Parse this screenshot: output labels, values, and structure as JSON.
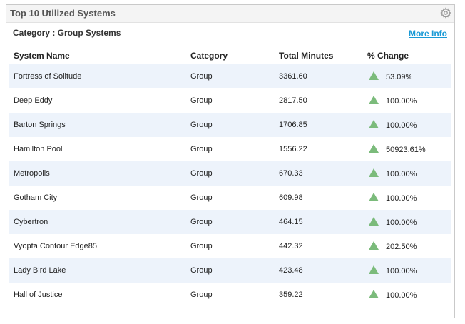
{
  "panel": {
    "title": "Top 10 Utilized Systems",
    "settings_icon": "gear-icon"
  },
  "subheader": {
    "category_label": "Category : Group Systems",
    "more_info": "More Info"
  },
  "table": {
    "headers": {
      "system_name": "System Name",
      "category": "Category",
      "total_minutes": "Total Minutes",
      "percent_change": "% Change"
    },
    "rows": [
      {
        "system_name": "Fortress of Solitude",
        "category": "Group",
        "total_minutes": "3361.60",
        "percent_change": "53.09%"
      },
      {
        "system_name": "Deep Eddy",
        "category": "Group",
        "total_minutes": "2817.50",
        "percent_change": "100.00%"
      },
      {
        "system_name": "Barton Springs",
        "category": "Group",
        "total_minutes": "1706.85",
        "percent_change": "100.00%"
      },
      {
        "system_name": "Hamilton Pool",
        "category": "Group",
        "total_minutes": "1556.22",
        "percent_change": "50923.61%"
      },
      {
        "system_name": "Metropolis",
        "category": "Group",
        "total_minutes": "670.33",
        "percent_change": "100.00%"
      },
      {
        "system_name": "Gotham City",
        "category": "Group",
        "total_minutes": "609.98",
        "percent_change": "100.00%"
      },
      {
        "system_name": "Cybertron",
        "category": "Group",
        "total_minutes": "464.15",
        "percent_change": "100.00%"
      },
      {
        "system_name": "Vyopta Contour Edge85",
        "category": "Group",
        "total_minutes": "442.32",
        "percent_change": "202.50%"
      },
      {
        "system_name": "Lady Bird Lake",
        "category": "Group",
        "total_minutes": "423.48",
        "percent_change": "100.00%"
      },
      {
        "system_name": "Hall of Justice",
        "category": "Group",
        "total_minutes": "359.22",
        "percent_change": "100.00%"
      }
    ],
    "trend_icon": "up-arrow-icon"
  },
  "colors": {
    "row_alt": "#edf3fb",
    "link": "#1a9ad6",
    "up_arrow": "#7bbb7b"
  }
}
